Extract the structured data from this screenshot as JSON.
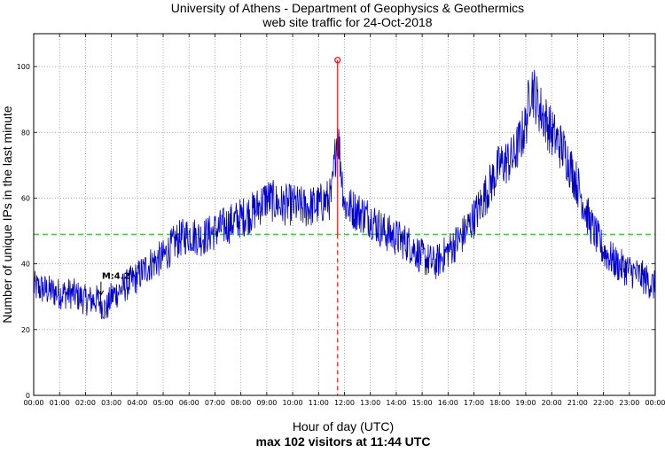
{
  "chart_data": {
    "type": "line",
    "title": [
      "University of Athens - Department of Geophysics & Geothermics",
      "web site traffic for 24-Oct-2018"
    ],
    "xlabel": "Hour of day (UTC)",
    "summary": "max 102 visitors at 11:44 UTC",
    "ylabel": "Number of unique IPs in the last minute",
    "xlim": [
      0,
      24
    ],
    "ylim": [
      0,
      110
    ],
    "x_ticks": [
      "00:00",
      "01:00",
      "02:00",
      "03:00",
      "04:00",
      "05:00",
      "06:00",
      "07:00",
      "08:00",
      "09:00",
      "10:00",
      "11:00",
      "12:00",
      "13:00",
      "14:00",
      "15:00",
      "16:00",
      "17:00",
      "18:00",
      "19:00",
      "20:00",
      "21:00",
      "22:00",
      "23:00",
      "00:00"
    ],
    "y_ticks": [
      0,
      20,
      40,
      60,
      80,
      100
    ],
    "grid": true,
    "average_line": 49,
    "max_marker": {
      "hour": 11.733,
      "value": 102,
      "label": "max 102 visitors at 11:44 UTC"
    },
    "annotation": {
      "text": "M:4.2",
      "hour": 2.7,
      "value": 30
    },
    "colors": {
      "series": "#0000cc",
      "average": "#00bb00",
      "max": "#ff0000",
      "grid": "#999999"
    },
    "series": [
      {
        "name": "visitors",
        "hours": [
          0,
          0.5,
          1,
          1.5,
          2,
          2.5,
          2.8,
          3,
          3.5,
          4,
          4.5,
          5,
          5.5,
          6,
          6.5,
          7,
          7.5,
          8,
          8.5,
          9,
          9.5,
          10,
          10.5,
          11,
          11.5,
          11.73,
          12,
          12.5,
          13,
          13.5,
          14,
          14.5,
          15,
          15.5,
          16,
          16.5,
          17,
          17.5,
          18,
          18.5,
          19,
          19.2,
          19.5,
          20,
          20.5,
          21,
          21.5,
          22,
          22.5,
          23,
          23.5,
          24
        ],
        "values": [
          33,
          32,
          31,
          31,
          29,
          29,
          26,
          30,
          33,
          36,
          40,
          42,
          47,
          49,
          48,
          50,
          52,
          54,
          56,
          60,
          58,
          58,
          57,
          58,
          60,
          81,
          58,
          56,
          54,
          50,
          48,
          46,
          42,
          40,
          44,
          48,
          54,
          62,
          70,
          72,
          82,
          95,
          88,
          80,
          74,
          64,
          52,
          44,
          40,
          38,
          36,
          33
        ]
      }
    ]
  }
}
